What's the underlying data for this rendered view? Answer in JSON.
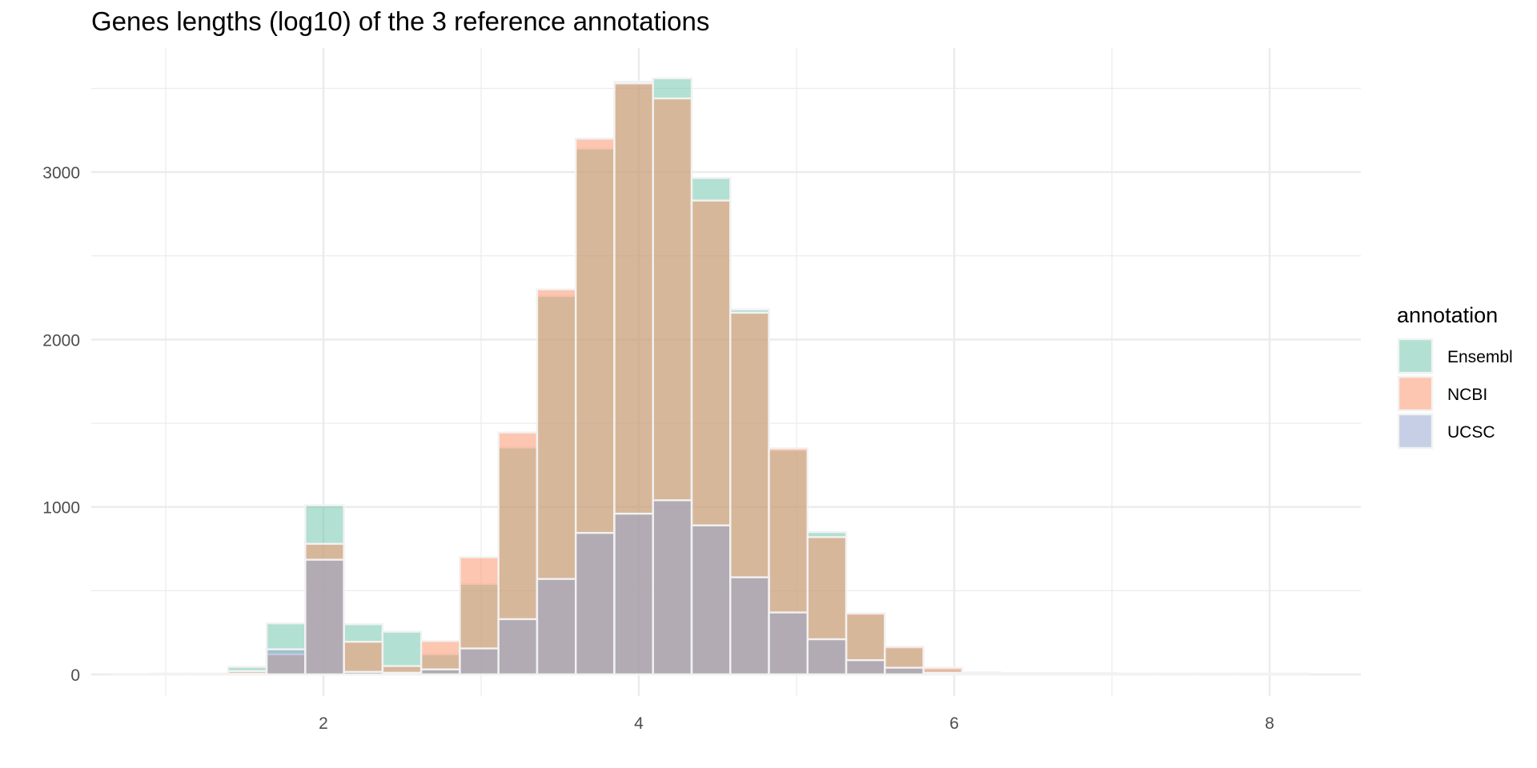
{
  "chart_data": {
    "type": "histogram",
    "title": "Genes lengths (log10) of the 3 reference annotations",
    "xlabel": "",
    "ylabel": "",
    "xlim": [
      0.5,
      8.5
    ],
    "ylim": [
      0,
      3500
    ],
    "x_ticks": [
      2,
      4,
      6,
      8
    ],
    "y_ticks": [
      0,
      1000,
      2000,
      3000
    ],
    "grid": true,
    "bins": {
      "width": 0.245,
      "left_edges": [
        0.66,
        0.905,
        1.15,
        1.395,
        1.64,
        1.885,
        2.13,
        2.375,
        2.62,
        2.865,
        3.11,
        3.355,
        3.6,
        3.845,
        4.09,
        4.335,
        4.58,
        4.825,
        5.07,
        5.315,
        5.56,
        5.805,
        6.05,
        6.295,
        6.54,
        6.785,
        7.03,
        7.275,
        7.52,
        7.765,
        8.01
      ]
    },
    "legend": {
      "title": "annotation",
      "position": "right"
    },
    "series": [
      {
        "name": "Ensembl",
        "color": "#66c2a5",
        "values": [
          2,
          5,
          5,
          45,
          305,
          1010,
          300,
          255,
          120,
          540,
          1355,
          2260,
          3140,
          3540,
          3560,
          2965,
          2180,
          1340,
          850,
          360,
          160,
          30,
          12,
          8,
          8,
          8,
          5,
          5,
          5,
          5,
          5
        ]
      },
      {
        "name": "NCBI",
        "color": "#fc8d62",
        "values": [
          2,
          3,
          3,
          20,
          120,
          780,
          195,
          50,
          200,
          700,
          1445,
          2300,
          3200,
          3530,
          3440,
          2830,
          2160,
          1350,
          820,
          365,
          165,
          40,
          10,
          5,
          5,
          5,
          3,
          3,
          3,
          3,
          3
        ]
      },
      {
        "name": "UCSC",
        "color": "#8da0cb",
        "values": [
          0,
          0,
          0,
          5,
          150,
          685,
          15,
          10,
          30,
          155,
          330,
          570,
          845,
          960,
          1040,
          890,
          580,
          370,
          210,
          85,
          40,
          10,
          3,
          2,
          2,
          2,
          2,
          2,
          2,
          2,
          2
        ]
      }
    ]
  }
}
